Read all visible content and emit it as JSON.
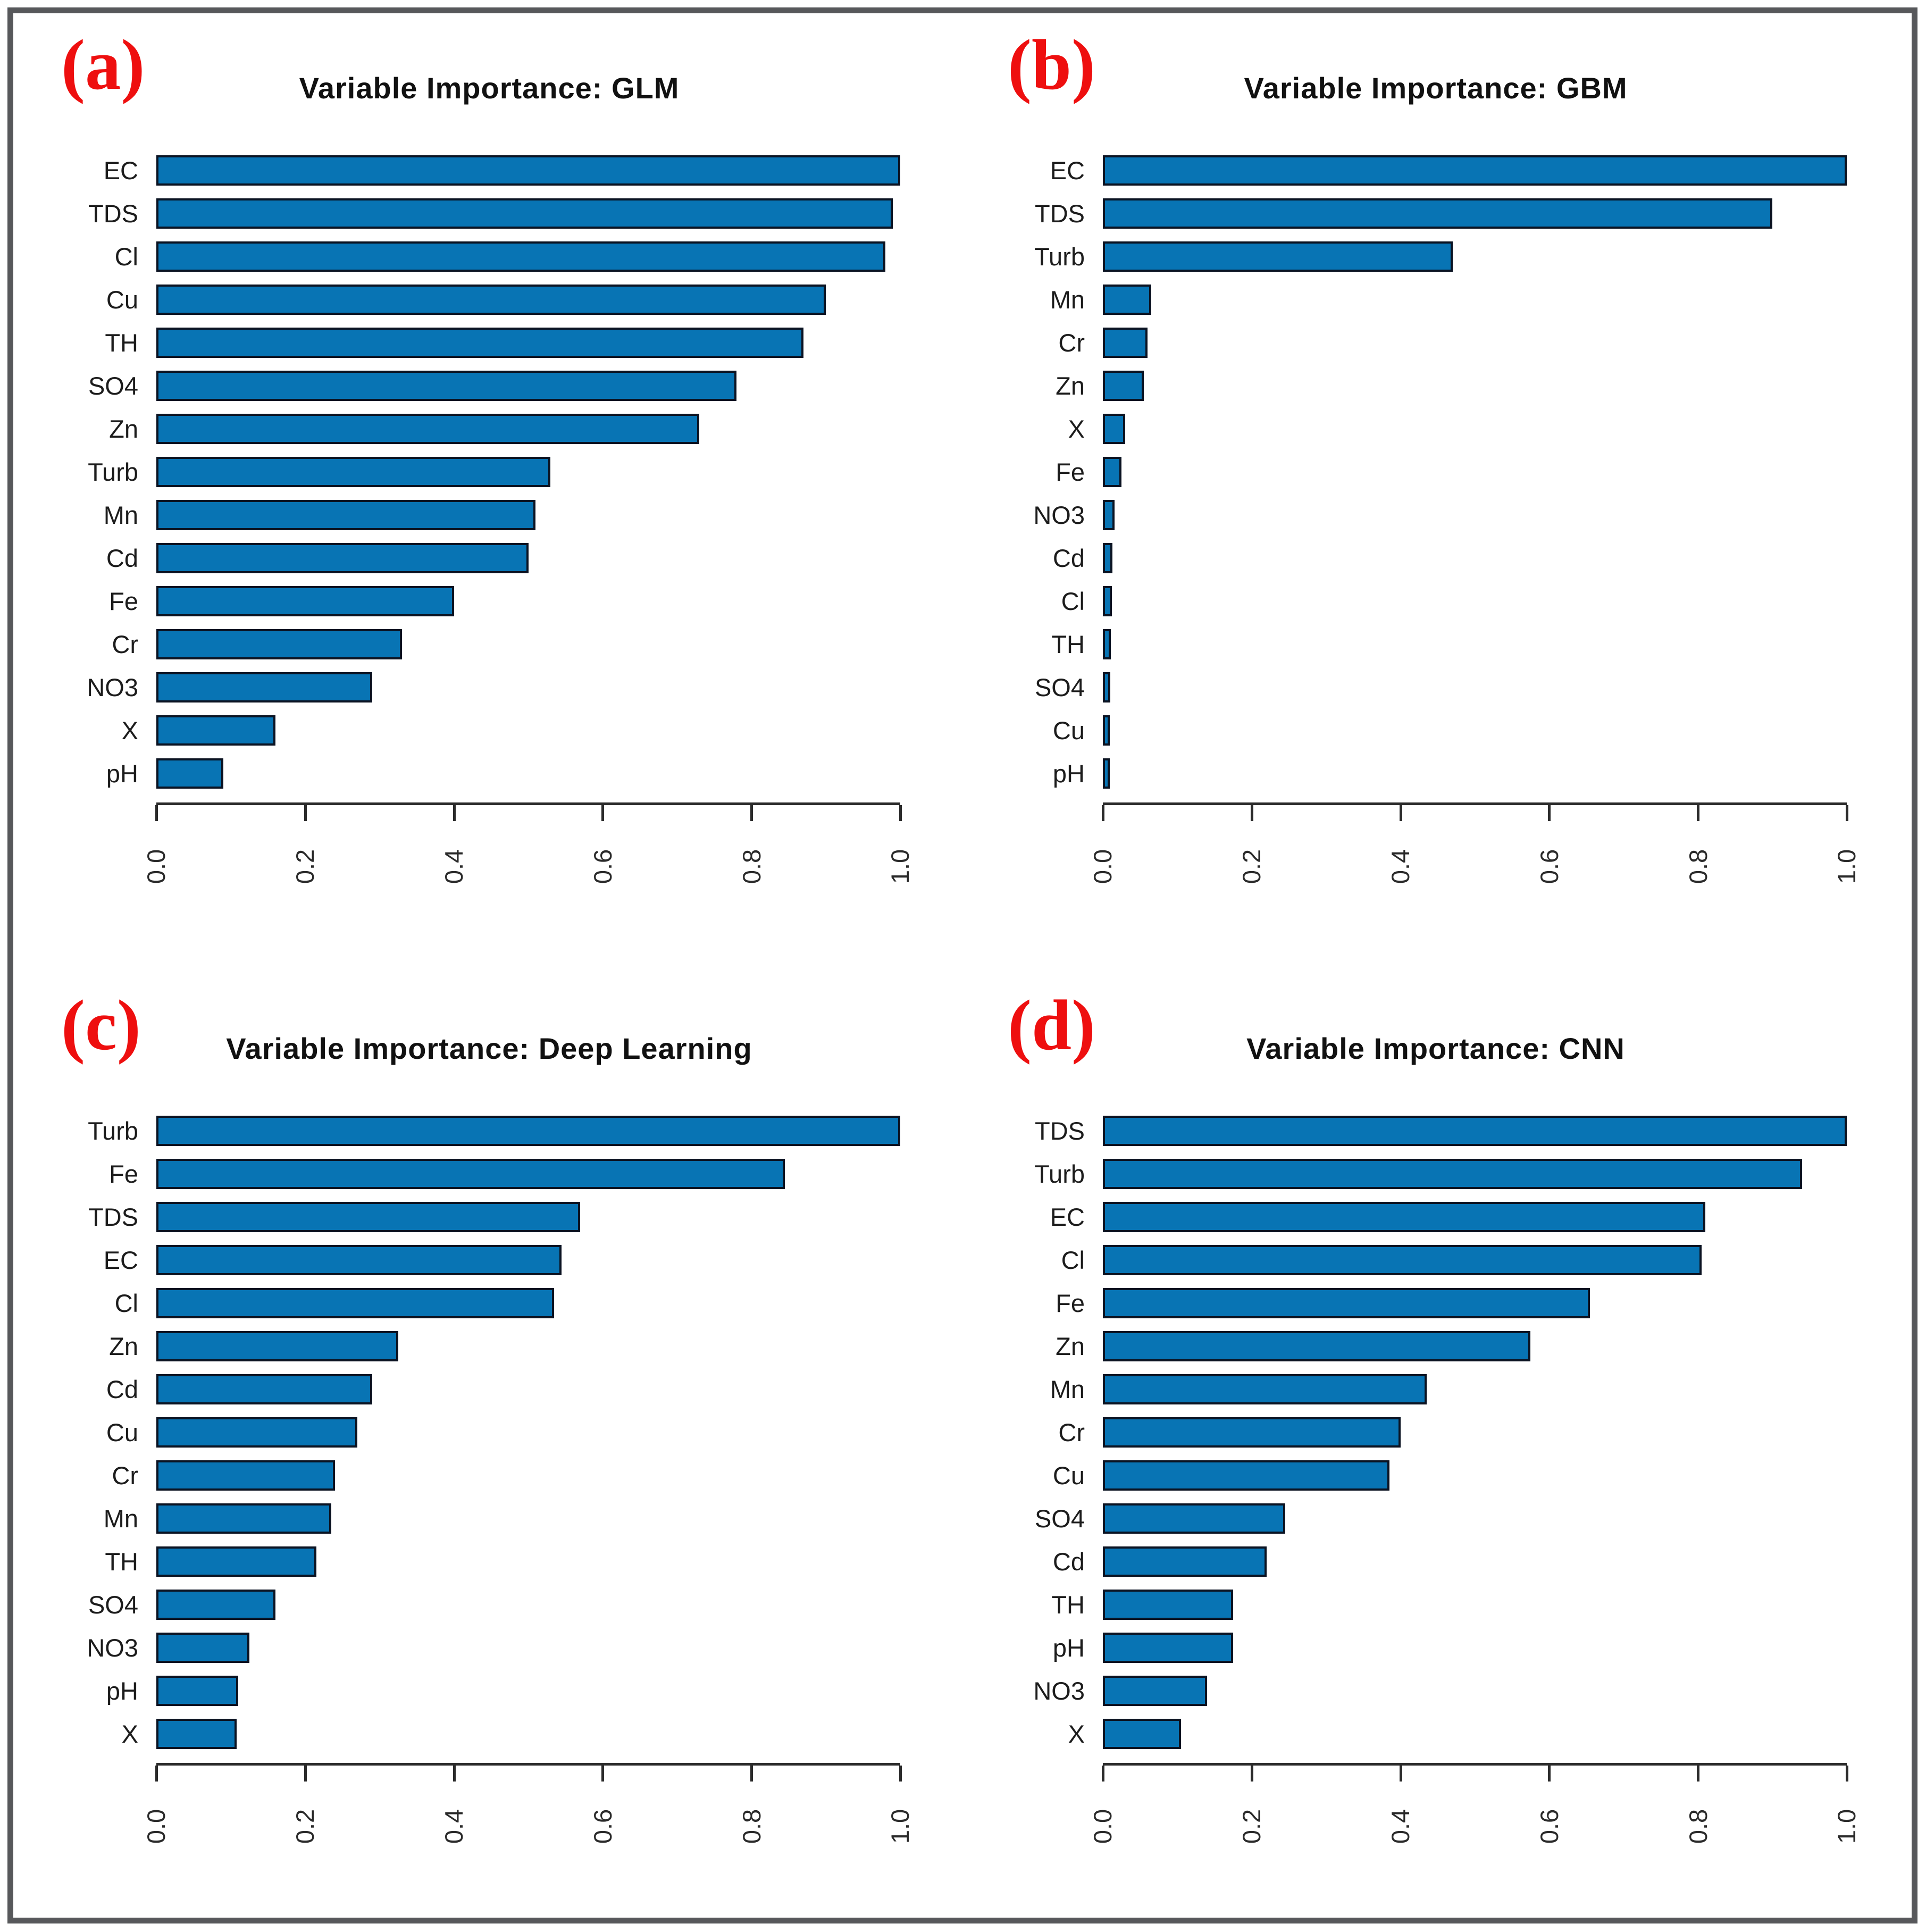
{
  "figure": {
    "bar_color": "#0874b4",
    "bar_border_color": "#0b1322",
    "frame_color": "#57585b",
    "letter_color": "#ee0f0f"
  },
  "panels": [
    {
      "letter": "(a)"
    },
    {
      "letter": "(b)"
    },
    {
      "letter": "(c)"
    },
    {
      "letter": "(d)"
    }
  ],
  "chart_data": [
    {
      "type": "bar",
      "orientation": "horizontal",
      "title": "Variable Importance: GLM",
      "categories": [
        "EC",
        "TDS",
        "Cl",
        "Cu",
        "TH",
        "SO4",
        "Zn",
        "Turb",
        "Mn",
        "Cd",
        "Fe",
        "Cr",
        "NO3",
        "X",
        "pH"
      ],
      "values": [
        1.0,
        0.99,
        0.98,
        0.9,
        0.87,
        0.78,
        0.73,
        0.53,
        0.51,
        0.5,
        0.4,
        0.33,
        0.29,
        0.16,
        0.09
      ],
      "xlabel": "",
      "ylabel": "",
      "xlim": [
        0,
        1
      ],
      "xticks": [
        0.0,
        0.2,
        0.4,
        0.6,
        0.8,
        1.0
      ],
      "tick_labels": [
        "0.0",
        "0.2",
        "0.4",
        "0.6",
        "0.8",
        "1.0"
      ],
      "grid": false,
      "legend": false
    },
    {
      "type": "bar",
      "orientation": "horizontal",
      "title": "Variable Importance: GBM",
      "categories": [
        "EC",
        "TDS",
        "Turb",
        "Mn",
        "Cr",
        "Zn",
        "X",
        "Fe",
        "NO3",
        "Cd",
        "Cl",
        "TH",
        "SO4",
        "Cu",
        "pH"
      ],
      "values": [
        1.0,
        0.9,
        0.47,
        0.065,
        0.06,
        0.055,
        0.03,
        0.025,
        0.016,
        0.013,
        0.012,
        0.011,
        0.01,
        0.008,
        0.006
      ],
      "xlabel": "",
      "ylabel": "",
      "xlim": [
        0,
        1
      ],
      "xticks": [
        0.0,
        0.2,
        0.4,
        0.6,
        0.8,
        1.0
      ],
      "tick_labels": [
        "0.0",
        "0.2",
        "0.4",
        "0.6",
        "0.8",
        "1.0"
      ],
      "grid": false,
      "legend": false
    },
    {
      "type": "bar",
      "orientation": "horizontal",
      "title": "Variable Importance: Deep Learning",
      "categories": [
        "Turb",
        "Fe",
        "TDS",
        "EC",
        "Cl",
        "Zn",
        "Cd",
        "Cu",
        "Cr",
        "Mn",
        "TH",
        "SO4",
        "NO3",
        "pH",
        "X"
      ],
      "values": [
        1.0,
        0.845,
        0.57,
        0.545,
        0.535,
        0.325,
        0.29,
        0.27,
        0.24,
        0.235,
        0.215,
        0.16,
        0.125,
        0.11,
        0.108
      ],
      "xlabel": "",
      "ylabel": "",
      "xlim": [
        0,
        1
      ],
      "xticks": [
        0.0,
        0.2,
        0.4,
        0.6,
        0.8,
        1.0
      ],
      "tick_labels": [
        "0.0",
        "0.2",
        "0.4",
        "0.6",
        "0.8",
        "1.0"
      ],
      "grid": false,
      "legend": false
    },
    {
      "type": "bar",
      "orientation": "horizontal",
      "title": "Variable Importance: CNN",
      "categories": [
        "TDS",
        "Turb",
        "EC",
        "Cl",
        "Fe",
        "Zn",
        "Mn",
        "Cr",
        "Cu",
        "SO4",
        "Cd",
        "TH",
        "pH",
        "NO3",
        "X"
      ],
      "values": [
        1.0,
        0.94,
        0.81,
        0.805,
        0.655,
        0.575,
        0.435,
        0.4,
        0.385,
        0.245,
        0.22,
        0.175,
        0.175,
        0.14,
        0.105
      ],
      "xlabel": "",
      "ylabel": "",
      "xlim": [
        0,
        1
      ],
      "xticks": [
        0.0,
        0.2,
        0.4,
        0.6,
        0.8,
        1.0
      ],
      "tick_labels": [
        "0.0",
        "0.2",
        "0.4",
        "0.6",
        "0.8",
        "1.0"
      ],
      "grid": false,
      "legend": false
    }
  ]
}
